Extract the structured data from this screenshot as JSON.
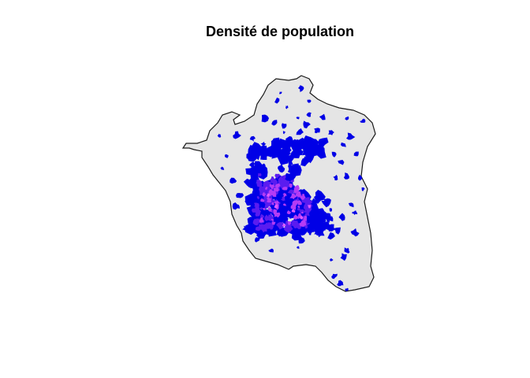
{
  "title": "Densité de population",
  "map": {
    "background_fill": "#e5e5e5",
    "border_color": "#1a1a1a",
    "density_colors": {
      "low": "#0000e6",
      "medium": "#5a1cf0",
      "high": "#b43cf5",
      "very_high": "#e05aff"
    }
  }
}
